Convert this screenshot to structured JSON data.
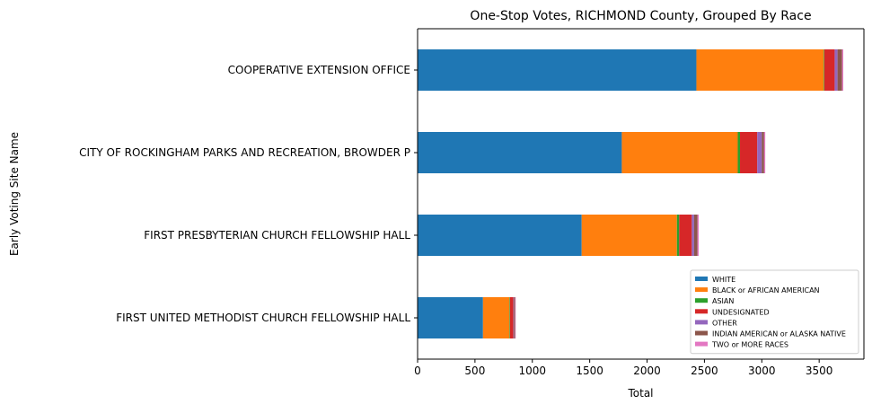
{
  "chart_data": {
    "type": "bar",
    "orientation": "horizontal",
    "stacked": true,
    "title": "One-Stop Votes, RICHMOND County, Grouped By Race",
    "xlabel": "Total",
    "ylabel": "Early Voting Site Name",
    "xlim": [
      0,
      3890
    ],
    "xticks": [
      0,
      500,
      1000,
      1500,
      2000,
      2500,
      3000,
      3500
    ],
    "grid": false,
    "legend_position": "lower-right",
    "categories": [
      "FIRST UNITED METHODIST CHURCH FELLOWSHIP HALL",
      "FIRST PRESBYTERIAN CHURCH FELLOWSHIP HALL",
      "CITY OF ROCKINGHAM PARKS AND RECREATION, BROWDER P",
      "COOPERATIVE EXTENSION OFFICE"
    ],
    "series": [
      {
        "name": "WHITE",
        "color": "#1f77b4",
        "values": [
          570,
          1430,
          1780,
          2430
        ]
      },
      {
        "name": "BLACK or AFRICAN AMERICAN",
        "color": "#ff7f0e",
        "values": [
          230,
          830,
          1010,
          1110
        ]
      },
      {
        "name": "ASIAN",
        "color": "#2ca02c",
        "values": [
          5,
          20,
          20,
          5
        ]
      },
      {
        "name": "UNDESIGNATED",
        "color": "#d62728",
        "values": [
          30,
          110,
          150,
          90
        ]
      },
      {
        "name": "OTHER",
        "color": "#9467bd",
        "values": [
          5,
          20,
          40,
          25
        ]
      },
      {
        "name": "INDIAN AMERICAN or ALASKA NATIVE",
        "color": "#8c564b",
        "values": [
          10,
          30,
          20,
          40
        ]
      },
      {
        "name": "TWO or MORE RACES",
        "color": "#e377c2",
        "values": [
          5,
          10,
          10,
          10
        ]
      }
    ]
  }
}
